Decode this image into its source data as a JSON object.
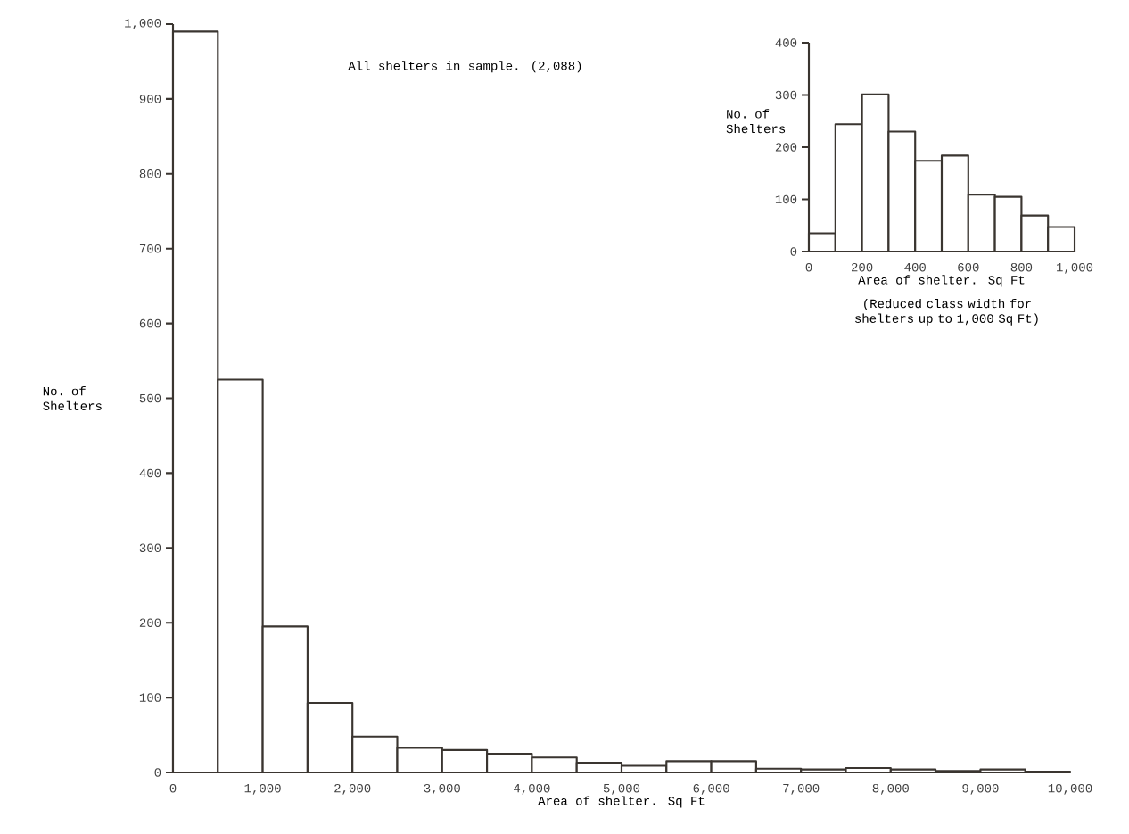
{
  "chart_data": [
    {
      "type": "histogram",
      "xlabel": "Area of shelter. Sq Ft",
      "ylabel": "No. of Shelters",
      "annotations": [
        "All shelters in sample. (2,088)"
      ],
      "bins": [
        0,
        500,
        1000,
        1500,
        2000,
        2500,
        3000,
        3500,
        4000,
        4500,
        5000,
        5500,
        6000,
        6500,
        7000,
        7500,
        8000,
        8500,
        9000,
        9500,
        10000
      ],
      "values": [
        990,
        525,
        195,
        93,
        48,
        33,
        30,
        25,
        20,
        13,
        9,
        15,
        15,
        5,
        4,
        6,
        4,
        2,
        4,
        1
      ],
      "color": "#3a3530",
      "xlim": [
        0,
        10000
      ],
      "xticks": [
        0,
        {
          "value": 1000,
          "label": "1,000"
        },
        {
          "value": 2000,
          "label": "2,000"
        },
        {
          "value": 3000,
          "label": "3,000"
        },
        {
          "value": 4000,
          "label": "4,000"
        },
        {
          "value": 5000,
          "label": "5,000"
        },
        {
          "value": 6000,
          "label": "6,000"
        },
        {
          "value": 7000,
          "label": "7,000"
        },
        {
          "value": 8000,
          "label": "8,000"
        },
        {
          "value": 9000,
          "label": "9,000"
        },
        {
          "value": 10000,
          "label": "10,000"
        }
      ],
      "ylim": [
        0,
        1000
      ],
      "yticks": [
        0,
        100,
        200,
        300,
        400,
        500,
        600,
        700,
        800,
        900,
        {
          "value": 1000,
          "label": "1,000"
        }
      ]
    },
    {
      "type": "histogram",
      "xlabel": "Area of shelter. Sq Ft",
      "ylabel": "No. of Shelters",
      "annotations": [
        "(Reduced class width for shelters up to 1,000 Sq Ft)"
      ],
      "bins": [
        0,
        100,
        200,
        300,
        400,
        500,
        600,
        700,
        800,
        900,
        1000
      ],
      "values": [
        35,
        244,
        301,
        230,
        174,
        184,
        109,
        105,
        69,
        47
      ],
      "color": "#3a3530",
      "xlim": [
        0,
        1000
      ],
      "xticks": [
        0,
        200,
        400,
        600,
        800,
        {
          "value": 1000,
          "label": "1,000"
        }
      ],
      "ylim": [
        0,
        400
      ],
      "yticks": [
        0,
        100,
        200,
        300,
        400
      ]
    }
  ]
}
